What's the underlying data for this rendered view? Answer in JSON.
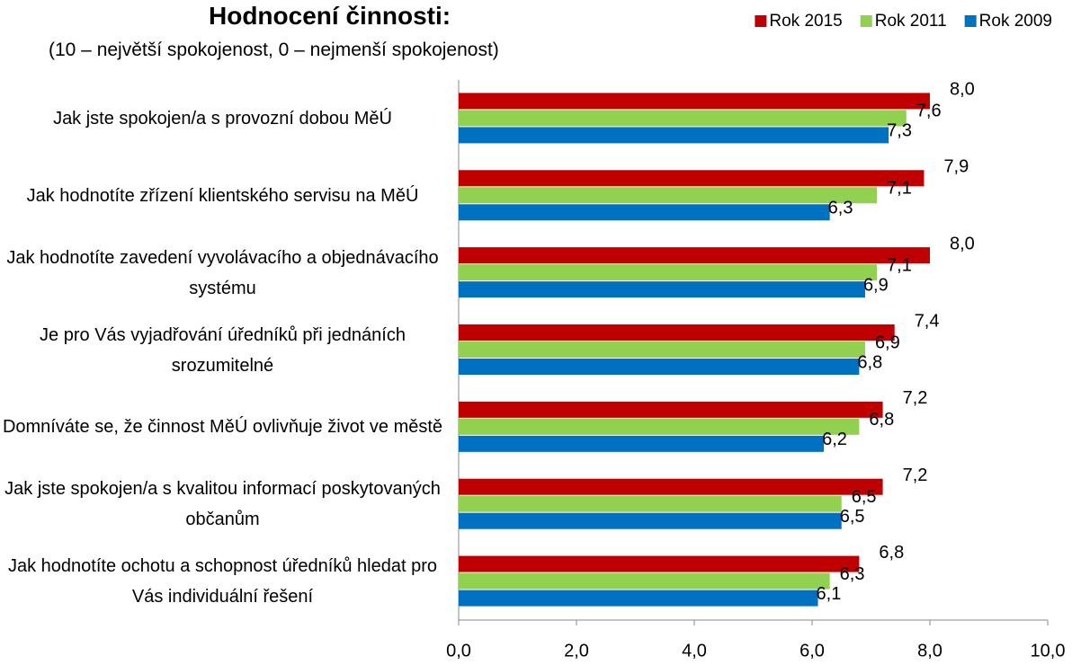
{
  "chart_data": {
    "type": "hbar",
    "title": "Hodnocení činnosti:",
    "subtitle": "(10 – největší spokojenost, 0 – nejmenší spokojenost)",
    "categories": [
      "Jak jste spokojen/a s provozní dobou MěÚ",
      "Jak hodnotíte zřízení klientského servisu na MěÚ",
      "Jak hodnotíte zavedení vyvolávacího a objednávacího systému",
      "Je pro Vás vyjadřování úředníků při jednáních srozumitelné",
      "Domníváte se, že činnost MěÚ ovlivňuje život ve městě",
      "Jak jste spokojen/a s kvalitou informací poskytovaných občanům",
      "Jak hodnotíte ochotu a schopnost úředníků hledat pro Vás individuální řešení"
    ],
    "series": [
      {
        "name": "Rok 2015",
        "color": "#c00000",
        "values": [
          8.0,
          7.9,
          8.0,
          7.4,
          7.2,
          7.2,
          6.8
        ],
        "value_labels": [
          "8,0",
          "7,9",
          "8,0",
          "7,4",
          "7,2",
          "7,2",
          "6,8"
        ]
      },
      {
        "name": "Rok 2011",
        "color": "#92d050",
        "values": [
          7.6,
          7.1,
          7.1,
          6.9,
          6.8,
          6.5,
          6.3
        ],
        "value_labels": [
          "7,6",
          "7,1",
          "7,1",
          "6,9",
          "6,8",
          "6,5",
          "6,3"
        ]
      },
      {
        "name": "Rok 2009",
        "color": "#0070c0",
        "values": [
          7.3,
          6.3,
          6.9,
          6.8,
          6.2,
          6.5,
          6.1
        ],
        "value_labels": [
          "7,3",
          "6,3",
          "6,9",
          "6,8",
          "6,2",
          "6,5",
          "6,1"
        ]
      }
    ],
    "xlim": [
      0,
      10
    ],
    "xticks": [
      {
        "value": 0,
        "label": "0,0"
      },
      {
        "value": 2,
        "label": "2,0"
      },
      {
        "value": 4,
        "label": "4,0"
      },
      {
        "value": 6,
        "label": "6,0"
      },
      {
        "value": 8,
        "label": "8,0"
      },
      {
        "value": 10,
        "label": "10,0"
      }
    ],
    "legend": "top-right"
  }
}
